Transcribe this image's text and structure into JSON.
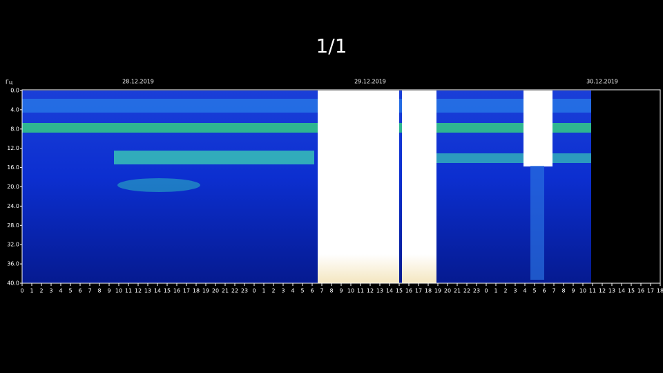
{
  "viewer": {
    "page_counter": "1/1"
  },
  "spectrogram": {
    "y_unit": "Гц",
    "yticks": [
      "0.0",
      "4.0",
      "8.0",
      "12.0",
      "16.0",
      "20.0",
      "24.0",
      "28.0",
      "32.0",
      "36.0",
      "40.0"
    ],
    "dates": [
      "28.12.2019",
      "29.12.2019",
      "30.12.2019"
    ],
    "hours": [
      "0",
      "1",
      "2",
      "3",
      "4",
      "5",
      "6",
      "7",
      "8",
      "9",
      "10",
      "11",
      "12",
      "13",
      "14",
      "15",
      "16",
      "17",
      "18",
      "19",
      "20",
      "21",
      "22",
      "23",
      "0",
      "1",
      "2",
      "3",
      "4",
      "5",
      "6",
      "7",
      "8",
      "9",
      "10",
      "11",
      "12",
      "13",
      "14",
      "15",
      "16",
      "17",
      "18",
      "19",
      "20",
      "21",
      "22",
      "23",
      "0",
      "1",
      "2",
      "3",
      "4",
      "5",
      "6",
      "7",
      "8",
      "9",
      "10",
      "11",
      "12",
      "13",
      "14",
      "15",
      "16",
      "17",
      "18"
    ]
  }
}
